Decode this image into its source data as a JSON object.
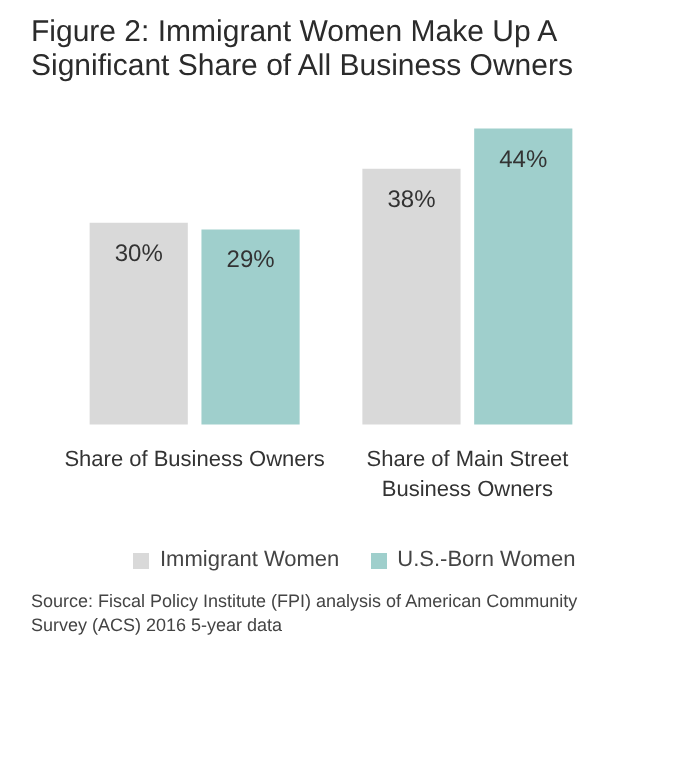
{
  "chart_data": {
    "type": "bar",
    "title": "Figure 2: Immigrant Women Make Up A\nSignificant Share of All Business Owners",
    "categories": [
      "Share of Business Owners",
      "Share of Main Street\nBusiness Owners"
    ],
    "series": [
      {
        "name": "Immigrant Women",
        "color": "#d9d9d9",
        "values": [
          30,
          38
        ],
        "value_labels": [
          "30%",
          "38%"
        ]
      },
      {
        "name": "U.S.-Born Women",
        "color": "#9fcfcc",
        "values": [
          29,
          44
        ],
        "value_labels": [
          "29%",
          "44%"
        ]
      }
    ],
    "legend": "bottom",
    "grid": false,
    "annotations": [
      "Source: Fiscal Policy Institute (FPI) analysis of American Community\nSurvey (ACS) 2016 5-year data"
    ]
  }
}
